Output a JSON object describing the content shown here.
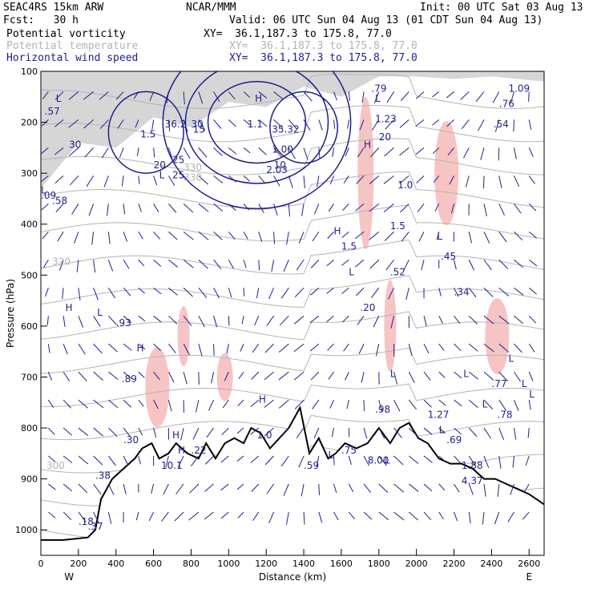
{
  "header": {
    "model": "SEAC4RS 15km ARW",
    "forecast": "Fcst:   30 h",
    "center": "NCAR/MMM",
    "init": "Init: 00 UTC Sat 03 Aug 13",
    "valid": "Valid: 06 UTC Sun 04 Aug 13 (01 CDT Sun 04 Aug 13)",
    "fields": [
      {
        "name": "Potential vorticity",
        "xy": "XY=  36.1,187.3 to 175.8, 77.0",
        "color": "#000000"
      },
      {
        "name": "Potential temperature",
        "xy": "XY=  36.1,187.3 to 175.8, 77.0",
        "color": "#b4b4b4"
      },
      {
        "name": "Horizontal wind speed",
        "xy": "XY=  36.1,187.3 to 175.8, 77.0",
        "color": "#1f1f8c"
      }
    ]
  },
  "chart_data": {
    "type": "cross-section",
    "xlabel": "Distance (km)",
    "ylabel": "Pressure (hPa)",
    "xlim": [
      0,
      2680
    ],
    "ylim": [
      1050,
      100
    ],
    "x_ticks": [
      0,
      200,
      400,
      600,
      800,
      1000,
      1200,
      1400,
      1600,
      1800,
      2000,
      2200,
      2400,
      2600
    ],
    "y_ticks": [
      100,
      200,
      300,
      400,
      500,
      600,
      700,
      800,
      900,
      1000
    ],
    "x_end_labels": {
      "left": "W",
      "right": "E"
    },
    "terrain": {
      "x": [
        0,
        120,
        250,
        290,
        320,
        380,
        440,
        500,
        540,
        590,
        630,
        680,
        720,
        780,
        840,
        880,
        930,
        980,
        1030,
        1080,
        1120,
        1170,
        1220,
        1270,
        1320,
        1380,
        1430,
        1480,
        1530,
        1570,
        1620,
        1680,
        1740,
        1800,
        1860,
        1910,
        1960,
        2010,
        2060,
        2120,
        2180,
        2240,
        2300,
        2360,
        2420,
        2480,
        2540,
        2600,
        2680
      ],
      "p": [
        1020,
        1020,
        1015,
        1000,
        940,
        900,
        880,
        860,
        840,
        830,
        860,
        850,
        830,
        850,
        860,
        830,
        860,
        830,
        820,
        830,
        800,
        810,
        840,
        820,
        800,
        760,
        850,
        820,
        860,
        850,
        830,
        840,
        830,
        800,
        830,
        800,
        790,
        820,
        830,
        860,
        870,
        870,
        880,
        900,
        900,
        910,
        920,
        930,
        950
      ]
    },
    "pv_contour_labels": [
      ".09",
      ".57",
      ".58",
      "2.03",
      "1.00",
      "1.5",
      "1.5",
      ".52",
      ".45",
      ".34",
      ".20",
      ".93",
      ".89",
      ".77",
      ".78",
      ".98",
      "1.27",
      ".69",
      ".75",
      "8.00",
      ".59",
      "1.0",
      "1.1",
      ".22",
      "10.1",
      ".30",
      ".38",
      ".37",
      ".18",
      "4.37",
      "1.88",
      "1.23",
      ".54",
      ".76",
      "1.09",
      ".79"
    ],
    "wind_contour_labels": [
      "36.2",
      "35.32",
      "30",
      "30",
      "25",
      "25",
      "20",
      "20",
      "15",
      "10",
      "1.5",
      "1.0"
    ],
    "theta_contour_labels": [
      "300",
      "320",
      "330",
      "330"
    ],
    "extrema_markers": [
      "L",
      "H",
      "L",
      "H",
      "L",
      "L",
      "H",
      "L",
      "L",
      "H",
      "L",
      "H",
      "L",
      "L",
      "L",
      "H",
      "L",
      "H",
      "L",
      "H",
      "L",
      "L",
      "L",
      "L"
    ]
  }
}
